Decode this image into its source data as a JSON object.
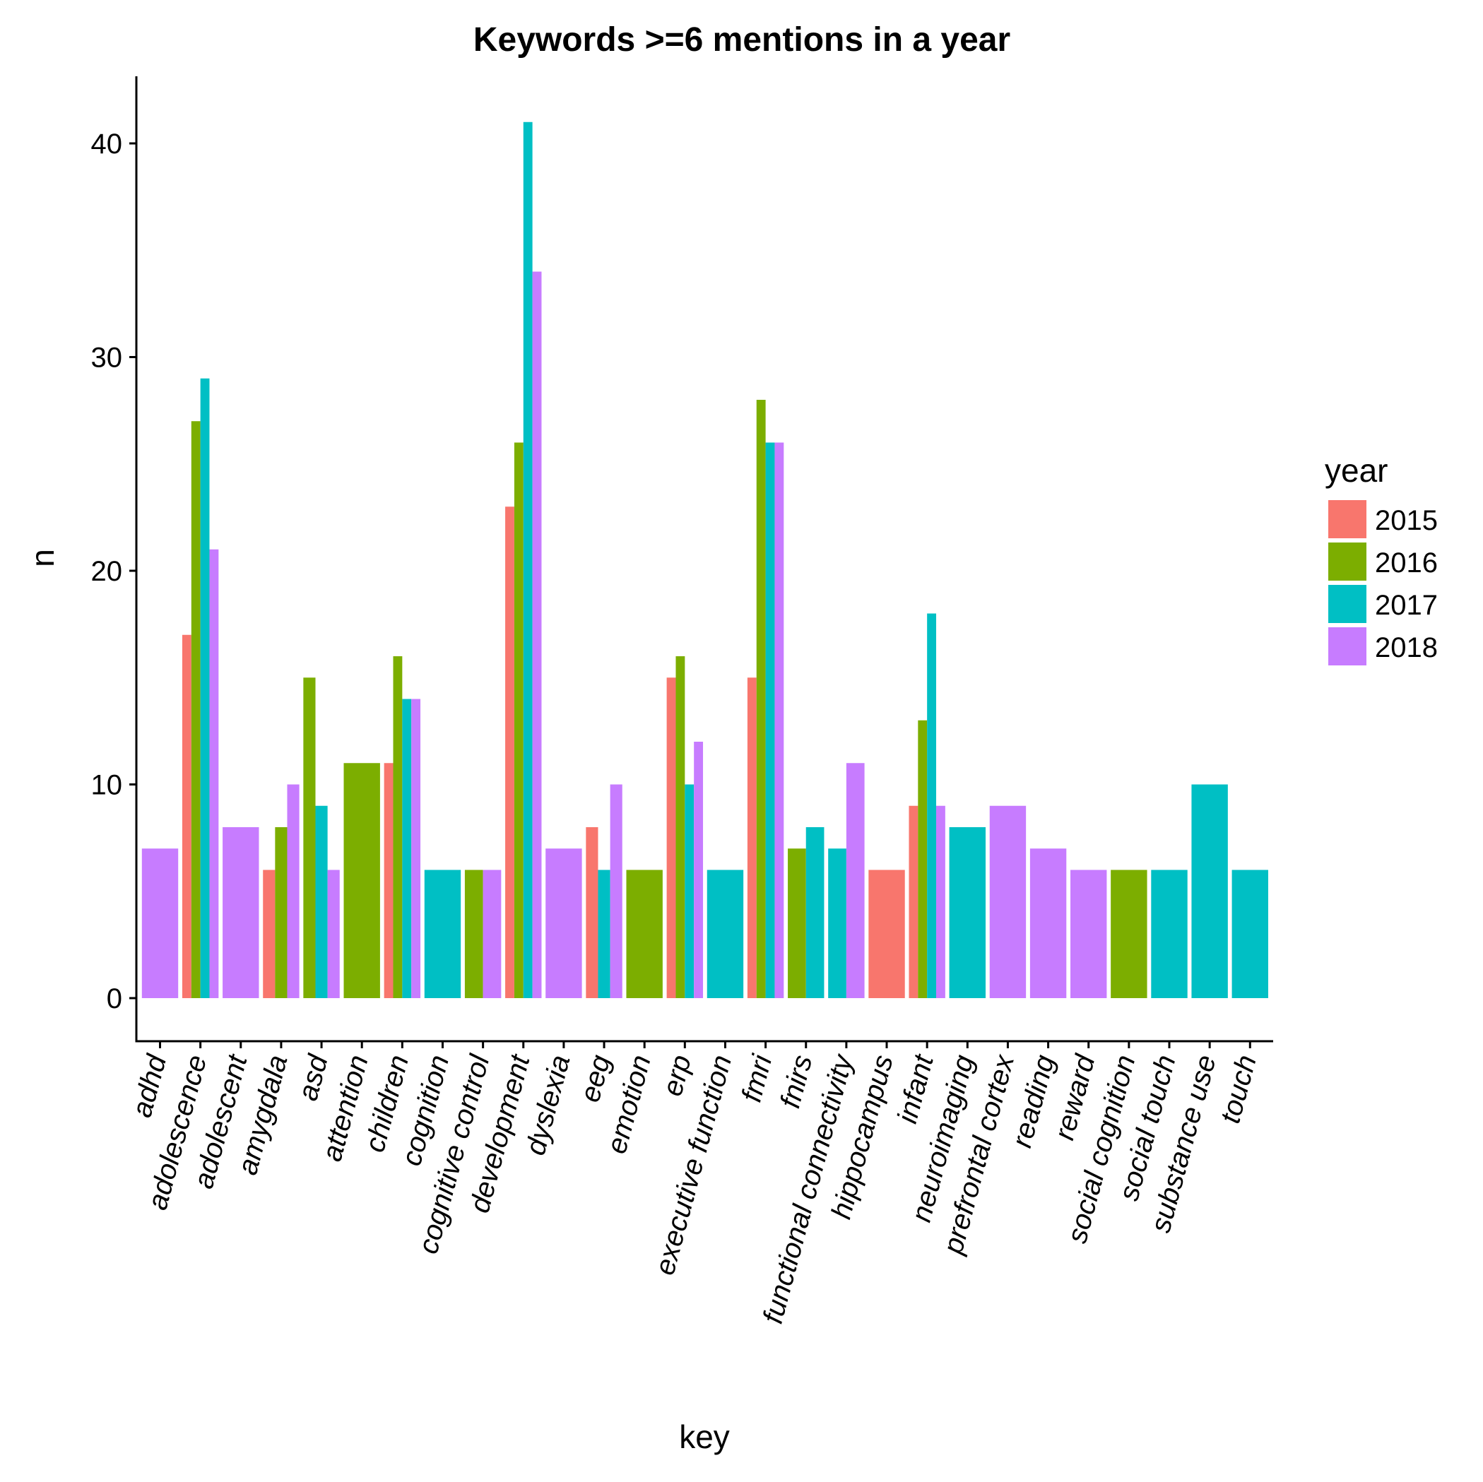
{
  "chart_data": {
    "type": "bar",
    "title": "Keywords >=6 mentions in a year",
    "xlabel": "key",
    "ylabel": "n",
    "ylim": [
      0,
      43
    ],
    "yticks": [
      0,
      10,
      20,
      30,
      40
    ],
    "grid": false,
    "legend": {
      "title": "year",
      "position": "right"
    },
    "colors": {
      "2015": "#F8766D",
      "2016": "#7CAE00",
      "2017": "#00BFC4",
      "2018": "#C77CFF"
    },
    "years": [
      "2015",
      "2016",
      "2017",
      "2018"
    ],
    "categories": [
      "adhd",
      "adolescence",
      "adolescent",
      "amygdala",
      "asd",
      "attention",
      "children",
      "cognition",
      "cognitive control",
      "development",
      "dyslexia",
      "eeg",
      "emotion",
      "erp",
      "executive function",
      "fmri",
      "fnirs",
      "functional connectivity",
      "hippocampus",
      "infant",
      "neuroimaging",
      "prefrontal cortex",
      "reading",
      "reward",
      "social cognition",
      "social touch",
      "substance use",
      "touch"
    ],
    "groups": [
      {
        "key": "adhd",
        "bars": [
          {
            "year": "2018",
            "value": 7
          }
        ]
      },
      {
        "key": "adolescence",
        "bars": [
          {
            "year": "2015",
            "value": 17
          },
          {
            "year": "2016",
            "value": 27
          },
          {
            "year": "2017",
            "value": 29
          },
          {
            "year": "2018",
            "value": 21
          }
        ]
      },
      {
        "key": "adolescent",
        "bars": [
          {
            "year": "2018",
            "value": 8
          }
        ]
      },
      {
        "key": "amygdala",
        "bars": [
          {
            "year": "2015",
            "value": 6
          },
          {
            "year": "2016",
            "value": 8
          },
          {
            "year": "2018",
            "value": 10
          }
        ]
      },
      {
        "key": "asd",
        "bars": [
          {
            "year": "2016",
            "value": 15
          },
          {
            "year": "2017",
            "value": 9
          },
          {
            "year": "2018",
            "value": 6
          }
        ]
      },
      {
        "key": "attention",
        "bars": [
          {
            "year": "2016",
            "value": 11
          }
        ]
      },
      {
        "key": "children",
        "bars": [
          {
            "year": "2015",
            "value": 11
          },
          {
            "year": "2016",
            "value": 16
          },
          {
            "year": "2017",
            "value": 14
          },
          {
            "year": "2018",
            "value": 14
          }
        ]
      },
      {
        "key": "cognition",
        "bars": [
          {
            "year": "2017",
            "value": 6
          }
        ]
      },
      {
        "key": "cognitive control",
        "bars": [
          {
            "year": "2016",
            "value": 6
          },
          {
            "year": "2018",
            "value": 6
          }
        ]
      },
      {
        "key": "development",
        "bars": [
          {
            "year": "2015",
            "value": 23
          },
          {
            "year": "2016",
            "value": 26
          },
          {
            "year": "2017",
            "value": 41
          },
          {
            "year": "2018",
            "value": 34
          }
        ]
      },
      {
        "key": "dyslexia",
        "bars": [
          {
            "year": "2018",
            "value": 7
          }
        ]
      },
      {
        "key": "eeg",
        "bars": [
          {
            "year": "2015",
            "value": 8
          },
          {
            "year": "2017",
            "value": 6
          },
          {
            "year": "2018",
            "value": 10
          }
        ]
      },
      {
        "key": "emotion",
        "bars": [
          {
            "year": "2016",
            "value": 6
          }
        ]
      },
      {
        "key": "erp",
        "bars": [
          {
            "year": "2015",
            "value": 15
          },
          {
            "year": "2016",
            "value": 16
          },
          {
            "year": "2017",
            "value": 10
          },
          {
            "year": "2018",
            "value": 12
          }
        ]
      },
      {
        "key": "executive function",
        "bars": [
          {
            "year": "2017",
            "value": 6
          }
        ]
      },
      {
        "key": "fmri",
        "bars": [
          {
            "year": "2015",
            "value": 15
          },
          {
            "year": "2016",
            "value": 28
          },
          {
            "year": "2017",
            "value": 26
          },
          {
            "year": "2018",
            "value": 26
          }
        ]
      },
      {
        "key": "fnirs",
        "bars": [
          {
            "year": "2016",
            "value": 7
          },
          {
            "year": "2017",
            "value": 8
          }
        ]
      },
      {
        "key": "functional connectivity",
        "bars": [
          {
            "year": "2017",
            "value": 7
          },
          {
            "year": "2018",
            "value": 11
          }
        ]
      },
      {
        "key": "hippocampus",
        "bars": [
          {
            "year": "2015",
            "value": 6
          }
        ]
      },
      {
        "key": "infant",
        "bars": [
          {
            "year": "2015",
            "value": 9
          },
          {
            "year": "2016",
            "value": 13
          },
          {
            "year": "2017",
            "value": 18
          },
          {
            "year": "2018",
            "value": 9
          }
        ]
      },
      {
        "key": "neuroimaging",
        "bars": [
          {
            "year": "2017",
            "value": 8
          }
        ]
      },
      {
        "key": "prefrontal cortex",
        "bars": [
          {
            "year": "2018",
            "value": 9
          }
        ]
      },
      {
        "key": "reading",
        "bars": [
          {
            "year": "2018",
            "value": 7
          }
        ]
      },
      {
        "key": "reward",
        "bars": [
          {
            "year": "2018",
            "value": 6
          }
        ]
      },
      {
        "key": "social cognition",
        "bars": [
          {
            "year": "2016",
            "value": 6
          }
        ]
      },
      {
        "key": "social touch",
        "bars": [
          {
            "year": "2017",
            "value": 6
          }
        ]
      },
      {
        "key": "substance use",
        "bars": [
          {
            "year": "2017",
            "value": 10
          }
        ]
      },
      {
        "key": "touch",
        "bars": [
          {
            "year": "2017",
            "value": 6
          }
        ]
      }
    ]
  }
}
